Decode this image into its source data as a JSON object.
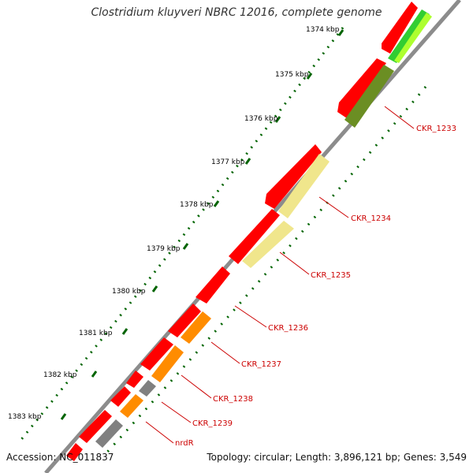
{
  "title": "Clostridium kluyveri NBRC 12016, complete genome",
  "footer": {
    "accession": "Accession: NC_011837",
    "summary": "Topology: circular; Length: 3,896,121 bp; Genes: 3,549"
  },
  "ticks": [
    "1374 kbp",
    "1375 kbp",
    "1376 kbp",
    "1377 kbp",
    "1378 kbp",
    "1379 kbp",
    "1380 kbp",
    "1381 kbp",
    "1382 kbp",
    "1383 kbp"
  ],
  "gene_labels": [
    "CKR_1233",
    "CKR_1234",
    "CKR_1235",
    "CKR_1236",
    "CKR_1237",
    "CKR_1238",
    "CKR_1239",
    "nrdR"
  ],
  "colors": {
    "cds_red": "#ff0000",
    "backbone": "#8c8c8c",
    "tick_green": "#006400",
    "label_red": "#cc0000",
    "cog_dark_olive": "#6b8e23",
    "cog_green": "#32cd32",
    "cog_light_green": "#adff2f",
    "cog_khaki": "#f0e68c",
    "cog_orange": "#ff8c00",
    "cog_gray": "#808080"
  }
}
